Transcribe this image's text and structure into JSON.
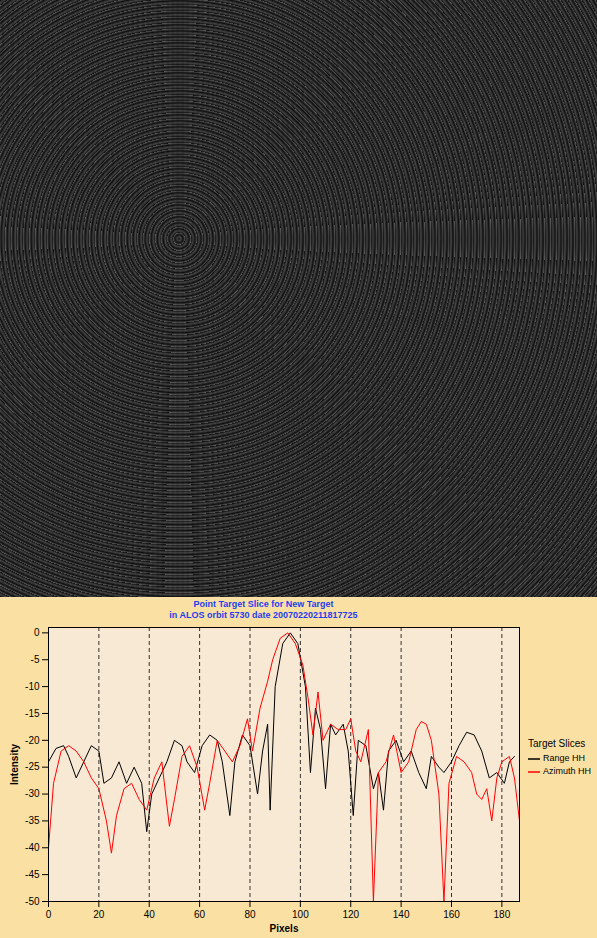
{
  "chart_data": {
    "type": "line",
    "title": "Point Target Slice for New Target",
    "subtitle": "in ALOS orbit 5730 date 20070220211817725",
    "x_label": "Pixels",
    "y_label": "Intensity",
    "xlim": [
      0,
      187
    ],
    "xticks": [
      0,
      20,
      40,
      60,
      80,
      100,
      120,
      140,
      160,
      180
    ],
    "ylim": [
      -50,
      1
    ],
    "yticks": [
      -50,
      -45,
      -40,
      -35,
      -30,
      -25,
      -20,
      -15,
      -10,
      -5,
      0
    ],
    "grid": true,
    "legend": "right",
    "legend_title": "Target Slices",
    "series": [
      {
        "name": "Range HH",
        "color": "#000000",
        "x": [
          0,
          3,
          6,
          8,
          11,
          14,
          17,
          20,
          22,
          25,
          28,
          31,
          34,
          37,
          39,
          41,
          44,
          47,
          50,
          53,
          55,
          58,
          61,
          64,
          67,
          69,
          72,
          74,
          77,
          80,
          83,
          85,
          87,
          88,
          90,
          93,
          96,
          99,
          102,
          104,
          106,
          108,
          110,
          112,
          114,
          117,
          119,
          121,
          123,
          126,
          129,
          131,
          133,
          135,
          138,
          141,
          144,
          147,
          150,
          152,
          155,
          157,
          160,
          163,
          166,
          169,
          172,
          175,
          178,
          181,
          183,
          185
        ],
        "values": [
          -24,
          -21.5,
          -21,
          -23,
          -27,
          -24,
          -21,
          -22,
          -28,
          -27,
          -24,
          -28,
          -25,
          -28,
          -37,
          -30,
          -27,
          -24,
          -20,
          -21,
          -24,
          -26,
          -21,
          -19,
          -20,
          -24,
          -34,
          -24,
          -19,
          -21,
          -30,
          -22,
          -17,
          -33,
          -10,
          -2,
          0,
          -2,
          -10,
          -26,
          -14,
          -18,
          -29,
          -17,
          -19,
          -17,
          -22,
          -34,
          -20,
          -21,
          -29,
          -26,
          -33,
          -22,
          -20,
          -24,
          -22,
          -26,
          -29,
          -23,
          -25,
          -26,
          -24,
          -21,
          -18.5,
          -19,
          -22,
          -27,
          -26,
          -28,
          -24,
          -23
        ]
      },
      {
        "name": "Azimuth HH",
        "color": "#ff0000",
        "x": [
          0,
          2,
          5,
          8,
          11,
          14,
          17,
          20,
          23,
          25,
          27,
          30,
          33,
          36,
          39,
          42,
          45,
          48,
          50,
          53,
          56,
          59,
          62,
          64,
          67,
          70,
          73,
          76,
          79,
          81,
          84,
          87,
          89,
          92,
          95,
          98,
          101,
          103,
          105,
          107,
          109,
          112,
          115,
          118,
          120,
          122,
          124,
          127,
          129,
          131,
          134,
          137,
          140,
          143,
          146,
          148,
          150,
          152,
          155,
          157,
          159,
          162,
          165,
          168,
          170,
          172,
          174,
          176,
          178,
          180,
          183,
          185,
          187
        ],
        "values": [
          -40,
          -28,
          -22,
          -21,
          -22,
          -24,
          -27,
          -29,
          -35,
          -41,
          -34,
          -29,
          -28,
          -31,
          -33,
          -27,
          -24,
          -36,
          -31,
          -23,
          -21,
          -25,
          -33,
          -28,
          -20,
          -22,
          -24,
          -21,
          -16,
          -22,
          -14,
          -9,
          -5,
          -1,
          0,
          -2,
          -6,
          -12,
          -19,
          -11,
          -20,
          -17,
          -18,
          -18,
          -16,
          -22,
          -24,
          -18,
          -50,
          -26,
          -24,
          -19,
          -26,
          -24,
          -18,
          -16.5,
          -17,
          -20,
          -30,
          -50,
          -28,
          -23,
          -24,
          -26,
          -30,
          -31,
          -29,
          -35,
          -27,
          -24,
          -23,
          -27,
          -35
        ]
      }
    ]
  }
}
